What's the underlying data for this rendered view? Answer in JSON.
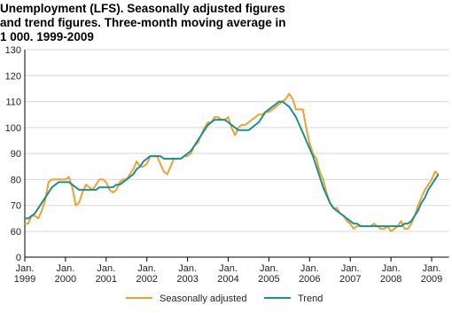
{
  "chart_data": {
    "type": "line",
    "title": "Unemployment (LFS). Seasonally adjusted figures and trend figures. Three-month moving average in 1 000. 1999-2009",
    "x": [
      "1999-01",
      "1999-02",
      "1999-03",
      "1999-04",
      "1999-05",
      "1999-06",
      "1999-07",
      "1999-08",
      "1999-09",
      "1999-10",
      "1999-11",
      "1999-12",
      "2000-01",
      "2000-02",
      "2000-03",
      "2000-04",
      "2000-05",
      "2000-06",
      "2000-07",
      "2000-08",
      "2000-09",
      "2000-10",
      "2000-11",
      "2000-12",
      "2001-01",
      "2001-02",
      "2001-03",
      "2001-04",
      "2001-05",
      "2001-06",
      "2001-07",
      "2001-08",
      "2001-09",
      "2001-10",
      "2001-11",
      "2001-12",
      "2002-01",
      "2002-02",
      "2002-03",
      "2002-04",
      "2002-05",
      "2002-06",
      "2002-07",
      "2002-08",
      "2002-09",
      "2002-10",
      "2002-11",
      "2002-12",
      "2003-01",
      "2003-02",
      "2003-03",
      "2003-04",
      "2003-05",
      "2003-06",
      "2003-07",
      "2003-08",
      "2003-09",
      "2003-10",
      "2003-11",
      "2003-12",
      "2004-01",
      "2004-02",
      "2004-03",
      "2004-04",
      "2004-05",
      "2004-06",
      "2004-07",
      "2004-08",
      "2004-09",
      "2004-10",
      "2004-11",
      "2004-12",
      "2005-01",
      "2005-02",
      "2005-03",
      "2005-04",
      "2005-05",
      "2005-06",
      "2005-07",
      "2005-08",
      "2005-09",
      "2005-10",
      "2005-11",
      "2005-12",
      "2006-01",
      "2006-02",
      "2006-03",
      "2006-04",
      "2006-05",
      "2006-06",
      "2006-07",
      "2006-08",
      "2006-09",
      "2006-10",
      "2006-11",
      "2006-12",
      "2007-01",
      "2007-02",
      "2007-03",
      "2007-04",
      "2007-05",
      "2007-06",
      "2007-07",
      "2007-08",
      "2007-09",
      "2007-10",
      "2007-11",
      "2007-12",
      "2008-01",
      "2008-02",
      "2008-03",
      "2008-04",
      "2008-05",
      "2008-06",
      "2008-07",
      "2008-08",
      "2008-09",
      "2008-10",
      "2008-11",
      "2008-12",
      "2009-01",
      "2009-02",
      "2009-03"
    ],
    "series": [
      {
        "name": "Seasonally adjusted",
        "color": "#f0a030",
        "values": [
          63,
          63,
          66,
          66,
          65,
          68,
          72,
          79,
          80,
          80,
          80,
          80,
          80,
          81,
          77,
          70,
          71,
          75,
          78,
          77,
          76,
          78,
          80,
          80,
          79,
          76,
          75,
          76,
          79,
          80,
          80,
          82,
          84,
          87,
          85,
          85,
          86,
          89,
          89,
          89,
          86,
          83,
          82,
          85,
          88,
          88,
          88,
          89,
          89,
          90,
          93,
          94,
          97,
          100,
          102,
          102,
          104,
          104,
          103,
          103,
          104,
          100,
          97,
          100,
          101,
          101,
          102,
          103,
          104,
          105,
          105,
          106,
          106,
          107,
          108,
          109,
          110,
          111,
          113,
          111,
          107,
          107,
          107,
          100,
          94,
          90,
          88,
          83,
          80,
          75,
          71,
          69,
          69,
          67,
          66,
          64,
          63,
          61,
          62,
          62,
          62,
          62,
          62,
          63,
          62,
          61,
          61,
          62,
          60,
          61,
          62,
          64,
          61,
          61,
          63,
          66,
          70,
          73,
          76,
          78,
          80,
          83,
          82
        ]
      },
      {
        "name": "Trend",
        "color": "#1a9090",
        "values": [
          65,
          65,
          66,
          67,
          69,
          71,
          73,
          75,
          77,
          78,
          79,
          79,
          79,
          79,
          78,
          77,
          76,
          76,
          76,
          76,
          76,
          76,
          77,
          77,
          77,
          77,
          77,
          78,
          78,
          79,
          80,
          81,
          82,
          84,
          85,
          87,
          88,
          89,
          89,
          89,
          89,
          88,
          88,
          88,
          88,
          88,
          88,
          89,
          90,
          91,
          93,
          95,
          97,
          99,
          101,
          102,
          103,
          103,
          103,
          103,
          102,
          101,
          100,
          99,
          99,
          99,
          99,
          100,
          101,
          102,
          104,
          106,
          107,
          108,
          109,
          110,
          110,
          109,
          108,
          106,
          104,
          101,
          98,
          95,
          92,
          89,
          85,
          81,
          77,
          74,
          71,
          69,
          68,
          67,
          66,
          65,
          64,
          63,
          63,
          62,
          62,
          62,
          62,
          62,
          62,
          62,
          62,
          62,
          62,
          62,
          62,
          62,
          63,
          63,
          64,
          66,
          68,
          71,
          73,
          76,
          78,
          80,
          82
        ]
      }
    ],
    "xlim": [
      1999,
      2009.25
    ],
    "xticks": [
      {
        "value": 1999,
        "label": "Jan. 1999"
      },
      {
        "value": 2000,
        "label": "Jan. 2000"
      },
      {
        "value": 2001,
        "label": "Jan. 2001"
      },
      {
        "value": 2002,
        "label": "Jan. 2002"
      },
      {
        "value": 2003,
        "label": "Jan. 2003"
      },
      {
        "value": 2004,
        "label": "Jan. 2004"
      },
      {
        "value": 2005,
        "label": "Jan. 2005"
      },
      {
        "value": 2006,
        "label": "Jan. 2006"
      },
      {
        "value": 2007,
        "label": "Jan. 2007"
      },
      {
        "value": 2008,
        "label": "Jan. 2008"
      },
      {
        "value": 2009,
        "label": "Jan. 2009"
      }
    ],
    "ylim": [
      0,
      130
    ],
    "yticks": [
      0,
      60,
      70,
      80,
      90,
      100,
      110,
      120,
      130
    ],
    "axis_break": true,
    "grid": true
  }
}
